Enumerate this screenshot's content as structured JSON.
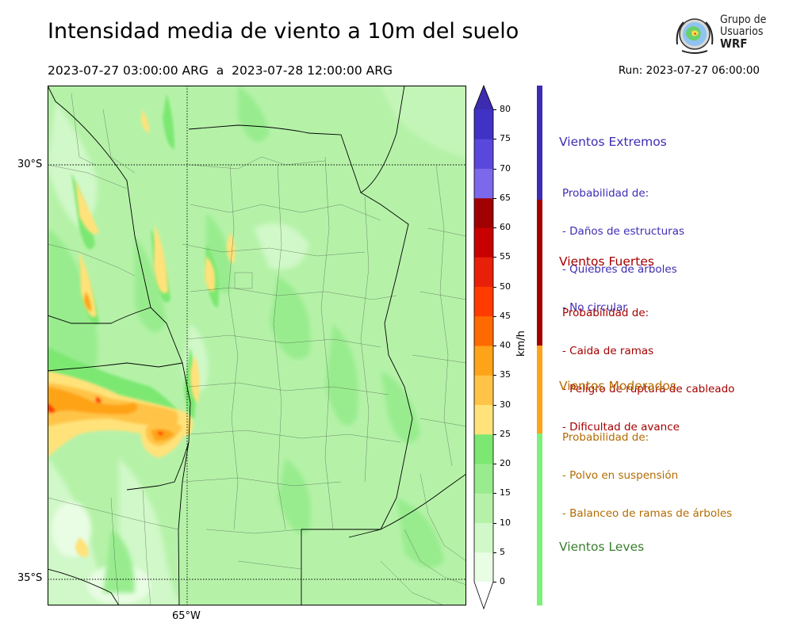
{
  "title": "Intensidad media de viento a 10m del suelo",
  "period": "2023-07-27 03:00:00 ARG  a  2023-07-28 12:00:00 ARG",
  "run": "Run: 2023-07-27 06:00:00",
  "logo": {
    "line1": "Grupo de",
    "line2": "Usuarios",
    "line3": "WRF"
  },
  "map": {
    "lat_labels": [
      "30°S",
      "35°S"
    ],
    "lon_labels": [
      "65°W"
    ]
  },
  "colorbar": {
    "unit": "km/h",
    "ticks": [
      "0",
      "5",
      "10",
      "15",
      "20",
      "25",
      "30",
      "35",
      "40",
      "45",
      "50",
      "55",
      "60",
      "65",
      "70",
      "75",
      "80"
    ],
    "colors": [
      "#e8fde3",
      "#d0f8c8",
      "#b5f2a8",
      "#98ec8e",
      "#7ce872",
      "#ffe27a",
      "#ffc447",
      "#ffa319",
      "#ff6a00",
      "#ff3b00",
      "#e8200a",
      "#c80000",
      "#a00000",
      "#7b68ea",
      "#5a48dc",
      "#4032c4"
    ]
  },
  "categories": [
    {
      "name": "Vientos Extremos",
      "color": "#3d2db4",
      "bar": "#3c2bb3",
      "lines": [
        "Probabilidad de:",
        "- Daños de estructuras",
        "- Quiebres de árboles",
        "- No circular"
      ]
    },
    {
      "name": "Vientos Fuertes",
      "color": "#a60000",
      "bar": "#a30000",
      "lines": [
        "Probabilidad de:",
        "- Caida de ramas",
        "- Peligro de ruptura de cableado",
        "- Dificultad de avance"
      ]
    },
    {
      "name": "Vientos Moderados",
      "color": "#b36b00",
      "bar": "#ffa31a",
      "lines": [
        "Probabilidad de:",
        "- Polvo en suspensión",
        "- Balanceo de ramas de árboles"
      ]
    },
    {
      "name": "Vientos Leves",
      "color": "#3a7d2e",
      "bar": "#7cf07a",
      "lines": []
    }
  ]
}
